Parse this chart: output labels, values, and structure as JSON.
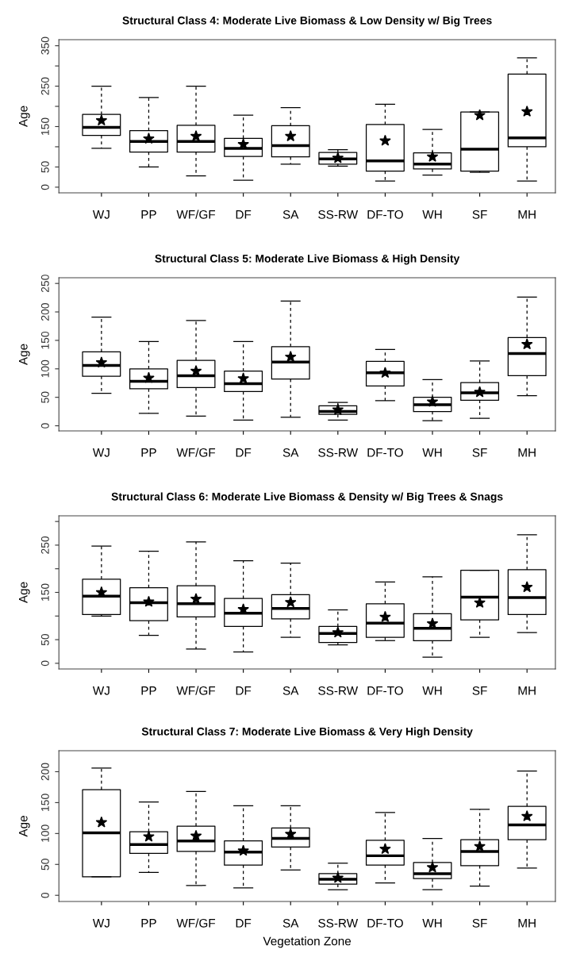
{
  "chart_data": [
    {
      "type": "box",
      "title": "Structural Class 4: Moderate Live Biomass & Low Density w/ Big Trees",
      "ylabel": "Age",
      "categories": [
        "WJ",
        "PP",
        "WF/GF",
        "DF",
        "SA",
        "SS-RW",
        "DF-TO",
        "WH",
        "SF",
        "MH"
      ],
      "ylim": [
        -14,
        365
      ],
      "yticks": [
        0,
        50,
        {
          "value": 100,
          "label": null
        },
        150,
        {
          "value": 200,
          "label": null
        },
        250,
        {
          "value": 300,
          "label": null
        },
        350
      ],
      "marker": "star",
      "grid": false,
      "legend": false,
      "boxes": [
        {
          "low": 96,
          "q1": 128,
          "median": 148,
          "q3": 180,
          "high": 250,
          "mean": 165
        },
        {
          "low": 50,
          "q1": 87,
          "median": 113,
          "q3": 140,
          "high": 222,
          "mean": 120
        },
        {
          "low": 28,
          "q1": 87,
          "median": 113,
          "q3": 153,
          "high": 250,
          "mean": 126
        },
        {
          "low": 17,
          "q1": 76,
          "median": 96,
          "q3": 121,
          "high": 178,
          "mean": 106
        },
        {
          "low": 57,
          "q1": 75,
          "median": 103,
          "q3": 152,
          "high": 197,
          "mean": 126
        },
        {
          "low": 52,
          "q1": 57,
          "median": 70,
          "q3": 86,
          "high": 93,
          "mean": 72
        },
        {
          "low": 15,
          "q1": 40,
          "median": 65,
          "q3": 155,
          "high": 205,
          "mean": 115
        },
        {
          "low": 30,
          "q1": 45,
          "median": 57,
          "q3": 85,
          "high": 143,
          "mean": 75
        },
        {
          "low": 37,
          "q1": 40,
          "median": 94,
          "q3": 186,
          "high": 186,
          "mean": 178
        },
        {
          "low": 15,
          "q1": 100,
          "median": 122,
          "q3": 280,
          "high": 320,
          "mean": 187
        }
      ]
    },
    {
      "type": "box",
      "title": "Structural Class 5: Moderate Live Biomass & High Density",
      "ylabel": "Age",
      "categories": [
        "WJ",
        "PP",
        "WF/GF",
        "DF",
        "SA",
        "SS-RW",
        "DF-TO",
        "WH",
        "SF",
        "MH"
      ],
      "ylim": [
        -9,
        260
      ],
      "yticks": [
        0,
        50,
        100,
        150,
        200,
        250
      ],
      "marker": "star",
      "grid": false,
      "legend": false,
      "boxes": [
        {
          "low": 57,
          "q1": 87,
          "median": 106,
          "q3": 130,
          "high": 191,
          "mean": 111
        },
        {
          "low": 22,
          "q1": 65,
          "median": 78,
          "q3": 100,
          "high": 148,
          "mean": 84
        },
        {
          "low": 17,
          "q1": 67,
          "median": 88,
          "q3": 115,
          "high": 185,
          "mean": 96
        },
        {
          "low": 10,
          "q1": 60,
          "median": 74,
          "q3": 96,
          "high": 148,
          "mean": 83
        },
        {
          "low": 15,
          "q1": 82,
          "median": 112,
          "q3": 139,
          "high": 219,
          "mean": 121
        },
        {
          "low": 10,
          "q1": 20,
          "median": 25,
          "q3": 35,
          "high": 41,
          "mean": 28
        },
        {
          "low": 44,
          "q1": 70,
          "median": 93,
          "q3": 113,
          "high": 134,
          "mean": 93
        },
        {
          "low": 9,
          "q1": 25,
          "median": 37,
          "q3": 50,
          "high": 81,
          "mean": 42
        },
        {
          "low": 13,
          "q1": 45,
          "median": 58,
          "q3": 76,
          "high": 114,
          "mean": 59
        },
        {
          "low": 53,
          "q1": 88,
          "median": 127,
          "q3": 155,
          "high": 226,
          "mean": 143
        }
      ]
    },
    {
      "type": "box",
      "title": "Structural Class 6: Moderate Live Biomass & Density w/ Big Trees & Snags",
      "ylabel": "Age",
      "categories": [
        "WJ",
        "PP",
        "WF/GF",
        "DF",
        "SA",
        "SS-RW",
        "DF-TO",
        "WH",
        "SF",
        "MH"
      ],
      "ylim": [
        -12,
        312
      ],
      "yticks": [
        0,
        50,
        {
          "value": 100,
          "label": null
        },
        150,
        {
          "value": 200,
          "label": null
        },
        250,
        {
          "value": 300,
          "label": null
        }
      ],
      "marker": "star",
      "grid": false,
      "legend": false,
      "boxes": [
        {
          "low": 100,
          "q1": 103,
          "median": 142,
          "q3": 178,
          "high": 248,
          "mean": 150
        },
        {
          "low": 59,
          "q1": 90,
          "median": 128,
          "q3": 160,
          "high": 237,
          "mean": 130
        },
        {
          "low": 30,
          "q1": 98,
          "median": 126,
          "q3": 164,
          "high": 257,
          "mean": 136
        },
        {
          "low": 24,
          "q1": 78,
          "median": 106,
          "q3": 137,
          "high": 217,
          "mean": 114
        },
        {
          "low": 55,
          "q1": 94,
          "median": 116,
          "q3": 145,
          "high": 212,
          "mean": 129
        },
        {
          "low": 39,
          "q1": 44,
          "median": 63,
          "q3": 78,
          "high": 113,
          "mean": 65
        },
        {
          "low": 48,
          "q1": 55,
          "median": 85,
          "q3": 126,
          "high": 172,
          "mean": 98
        },
        {
          "low": 13,
          "q1": 48,
          "median": 74,
          "q3": 105,
          "high": 183,
          "mean": 84
        },
        {
          "low": 55,
          "q1": 92,
          "median": 140,
          "q3": 197,
          "high": 197,
          "mean": 128
        },
        {
          "low": 65,
          "q1": 103,
          "median": 139,
          "q3": 198,
          "high": 272,
          "mean": 161
        }
      ]
    },
    {
      "type": "box",
      "title": "Structural Class 7: Moderate Live Biomass & Very High Density",
      "ylabel": "Age",
      "xlabel": "Vegetation Zone",
      "categories": [
        "WJ",
        "PP",
        "WF/GF",
        "DF",
        "SA",
        "SS-RW",
        "DF-TO",
        "WH",
        "SF",
        "MH"
      ],
      "ylim": [
        -10,
        234
      ],
      "yticks": [
        0,
        50,
        100,
        150,
        200
      ],
      "marker": "star",
      "grid": false,
      "legend": false,
      "boxes": [
        {
          "low": 30,
          "q1": 30,
          "median": 101,
          "q3": 171,
          "high": 206,
          "mean": 118
        },
        {
          "low": 37,
          "q1": 68,
          "median": 82,
          "q3": 103,
          "high": 151,
          "mean": 95
        },
        {
          "low": 16,
          "q1": 71,
          "median": 88,
          "q3": 112,
          "high": 168,
          "mean": 96
        },
        {
          "low": 12,
          "q1": 49,
          "median": 70,
          "q3": 88,
          "high": 145,
          "mean": 72
        },
        {
          "low": 41,
          "q1": 78,
          "median": 92,
          "q3": 109,
          "high": 145,
          "mean": 99
        },
        {
          "low": 9,
          "q1": 18,
          "median": 26,
          "q3": 35,
          "high": 52,
          "mean": 28
        },
        {
          "low": 20,
          "q1": 49,
          "median": 64,
          "q3": 89,
          "high": 134,
          "mean": 75
        },
        {
          "low": 9,
          "q1": 27,
          "median": 35,
          "q3": 53,
          "high": 92,
          "mean": 45
        },
        {
          "low": 15,
          "q1": 48,
          "median": 71,
          "q3": 90,
          "high": 139,
          "mean": 79
        },
        {
          "low": 44,
          "q1": 90,
          "median": 114,
          "q3": 144,
          "high": 201,
          "mean": 128
        }
      ]
    }
  ]
}
